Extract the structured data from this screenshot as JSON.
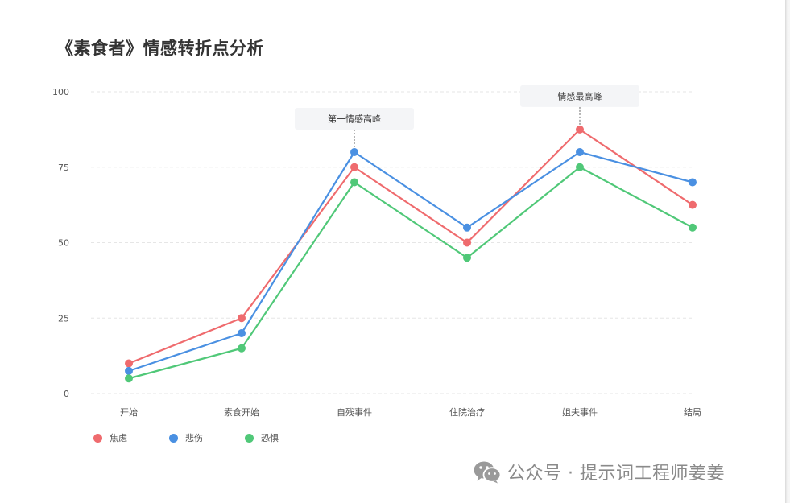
{
  "title": "《素食者》情感转折点分析",
  "chart_data": {
    "type": "line",
    "categories": [
      "开始",
      "素食开始",
      "自残事件",
      "住院治疗",
      "姐夫事件",
      "结局"
    ],
    "yticks": [
      0,
      25,
      50,
      75,
      100
    ],
    "ylim": [
      0,
      100
    ],
    "grid": true,
    "legend_position": "bottom-left",
    "series": [
      {
        "name": "焦虑",
        "color": "#ef6b6e",
        "values": [
          10,
          25,
          75,
          50,
          87.5,
          62.5
        ]
      },
      {
        "name": "悲伤",
        "color": "#4a90e2",
        "values": [
          7.5,
          20,
          80,
          55,
          80,
          70
        ]
      },
      {
        "name": "恐惧",
        "color": "#50c878",
        "values": [
          5,
          15,
          70,
          45,
          75,
          55
        ]
      }
    ],
    "annotations": [
      {
        "text": "第一情感高峰",
        "category": "自残事件",
        "value": 80
      },
      {
        "text": "情感最高峰",
        "category": "姐夫事件",
        "value": 87.5
      }
    ]
  },
  "watermark": {
    "text": "公众号 · 提示词工程师姜姜",
    "icon": "wechat-icon"
  }
}
